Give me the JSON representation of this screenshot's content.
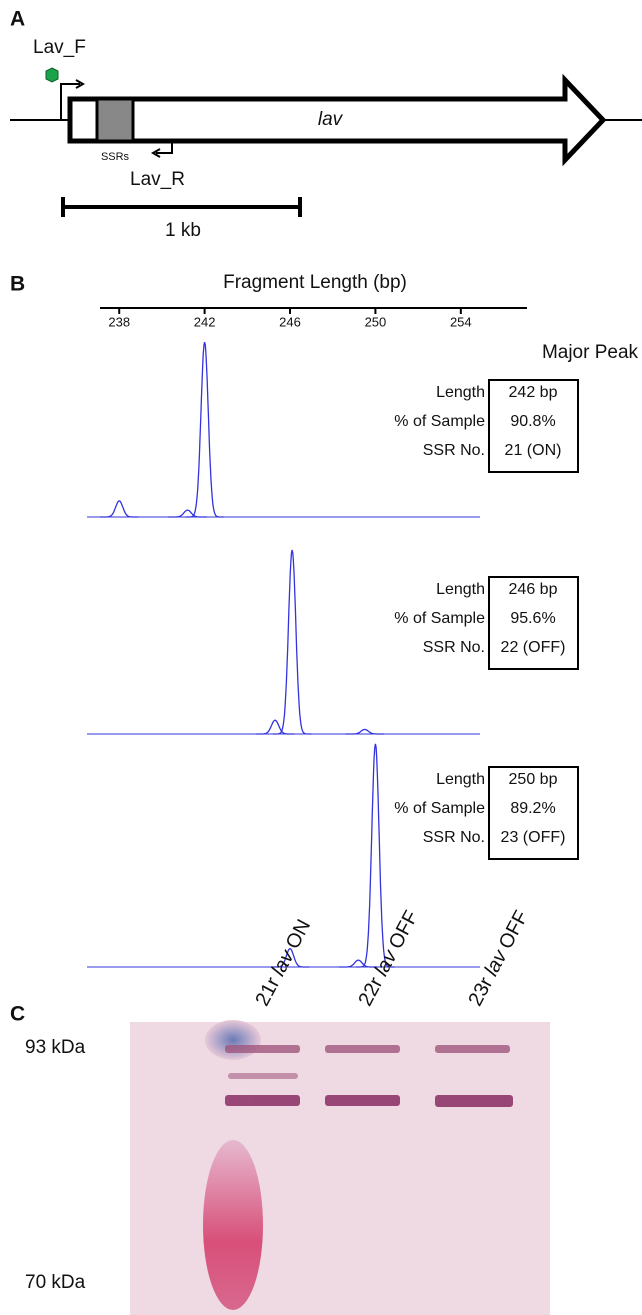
{
  "panel_a": {
    "letter": "A",
    "forward_primer": "Lav_F",
    "reverse_primer": "Lav_R",
    "gene": "lav",
    "repeat_label": "SSRs",
    "scale_bar": "1 kb"
  },
  "panel_b": {
    "letter": "B",
    "axis_label": "Fragment Length (bp)",
    "xlim": [
      237.1,
      257.1
    ],
    "xticks": [
      238,
      242,
      246,
      250,
      254
    ],
    "table_title": "Major Peak",
    "row_labels": [
      "Length",
      "% of Sample",
      "SSR No."
    ],
    "traces": [
      {
        "peaks": [
          {
            "x": 238,
            "height": 7
          },
          {
            "x": 241.2,
            "height": 3
          },
          {
            "x": 242,
            "height": 76
          }
        ],
        "table": [
          "242 bp",
          "90.8%",
          "21 (ON)"
        ]
      },
      {
        "peaks": [
          {
            "x": 245.3,
            "height": 6
          },
          {
            "x": 246.1,
            "height": 80
          },
          {
            "x": 249.5,
            "height": 2
          }
        ],
        "table": [
          "246 bp",
          "95.6%",
          "22 (OFF)"
        ]
      },
      {
        "peaks": [
          {
            "x": 246,
            "height": 8
          },
          {
            "x": 249.2,
            "height": 3
          },
          {
            "x": 250,
            "height": 97
          }
        ],
        "table": [
          "250 bp",
          "89.2%",
          "23 (OFF)"
        ]
      }
    ]
  },
  "panel_c": {
    "letter": "C",
    "markers": [
      "93 kDa",
      "70 kDa"
    ],
    "lanes": [
      {
        "prefix": "21r",
        "gene": "lav",
        "state": "ON"
      },
      {
        "prefix": "22r",
        "gene": "lav",
        "state": "OFF"
      },
      {
        "prefix": "23r",
        "gene": "lav",
        "state": "OFF"
      }
    ]
  }
}
